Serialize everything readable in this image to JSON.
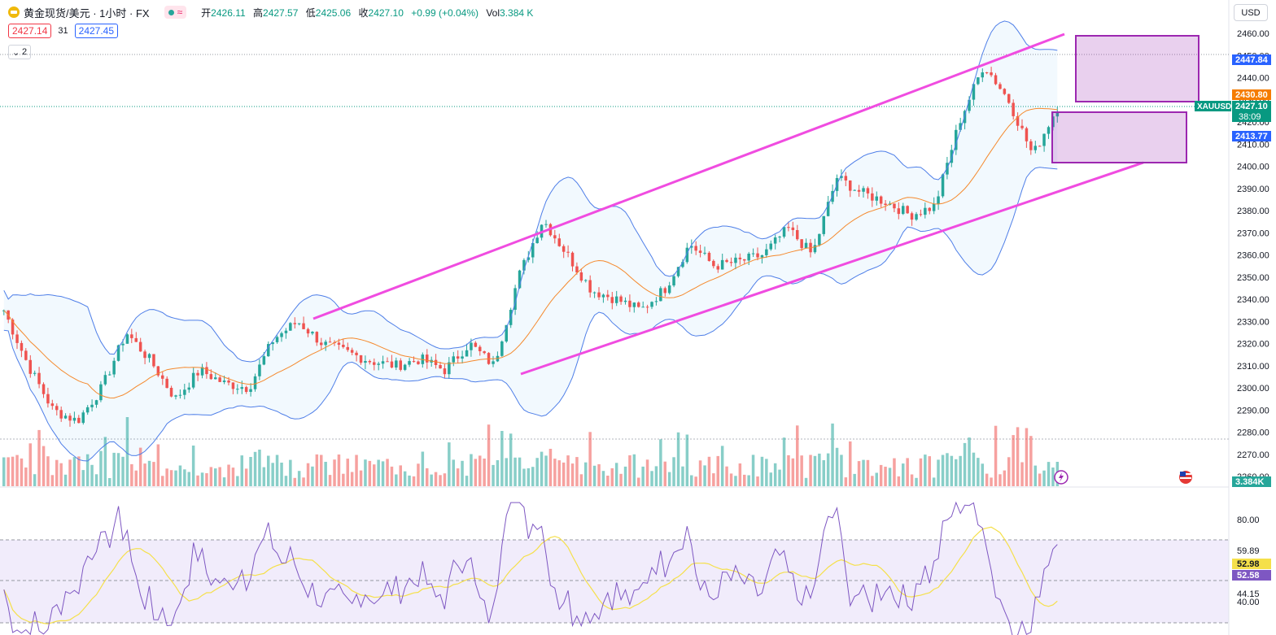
{
  "header": {
    "symbol_title": "黄金现货/美元 · 1小时 · FX",
    "toggle_label": "≈",
    "ohlc": [
      {
        "key": "开",
        "value": "2426.11"
      },
      {
        "key": "高",
        "value": "2427.57"
      },
      {
        "key": "低",
        "value": "2425.06"
      },
      {
        "key": "收",
        "value": "2427.10"
      }
    ],
    "change": "+0.99 (+0.04%)",
    "volume_label": "Vol",
    "volume_value": "3.384 K"
  },
  "trade": {
    "sell_price": "2427.14",
    "spread": "31",
    "buy_price": "2427.45"
  },
  "indicator_collapse": {
    "count": "2"
  },
  "currency_selector": "USD",
  "price_axis": {
    "ticks": [
      "2460.00",
      "2450.00",
      "2440.00",
      "2430.00",
      "2420.00",
      "2410.00",
      "2400.00",
      "2390.00",
      "2380.00",
      "2370.00",
      "2360.00",
      "2350.00",
      "2340.00",
      "2330.00",
      "2320.00",
      "2310.00",
      "2300.00",
      "2290.00",
      "2280.00",
      "2270.00",
      "2260.00"
    ],
    "labels": {
      "high_line": "2447.84",
      "orange": "2430.80",
      "symbol": "XAUUSD",
      "last": "2427.10",
      "countdown": "38:09",
      "low_line": "2413.77",
      "volume": "3.384K"
    }
  },
  "rsi_axis": {
    "ticks": [
      "80.00",
      "59.89",
      "44.15",
      "40.00"
    ],
    "labels": {
      "rsi_ma": "52.98",
      "rsi": "52.58"
    }
  },
  "colors": {
    "up": "#26a69a",
    "down": "#ef5350",
    "channel": "#f04ce0",
    "bollinger": "#4f7fe8",
    "basis": "#f5892d",
    "rsi": "#7e57c2",
    "rsi_ma": "#f5e04a",
    "zone": "#9c27b0"
  },
  "icons": {
    "lightning": "lightning-icon",
    "flag": "us-flag-icon"
  },
  "chart_data": {
    "type": "candlestick",
    "interval": "1小时",
    "ylim": [
      2258,
      2462
    ],
    "candle_count": 240,
    "close_path": [
      2335,
      2310,
      2290,
      2285,
      2300,
      2325,
      2312,
      2295,
      2308,
      2302,
      2300,
      2322,
      2330,
      2320,
      2316,
      2312,
      2310,
      2313,
      2308,
      2320,
      2310,
      2350,
      2376,
      2360,
      2344,
      2340,
      2335,
      2345,
      2365,
      2355,
      2357,
      2360,
      2372,
      2360,
      2395,
      2388,
      2384,
      2378,
      2382,
      2420,
      2446,
      2430,
      2405,
      2427
    ],
    "indicators": {
      "rsi": {
        "upper_band": 70,
        "lower_band": 30,
        "value": 52.58,
        "ma": 52.98
      }
    }
  }
}
